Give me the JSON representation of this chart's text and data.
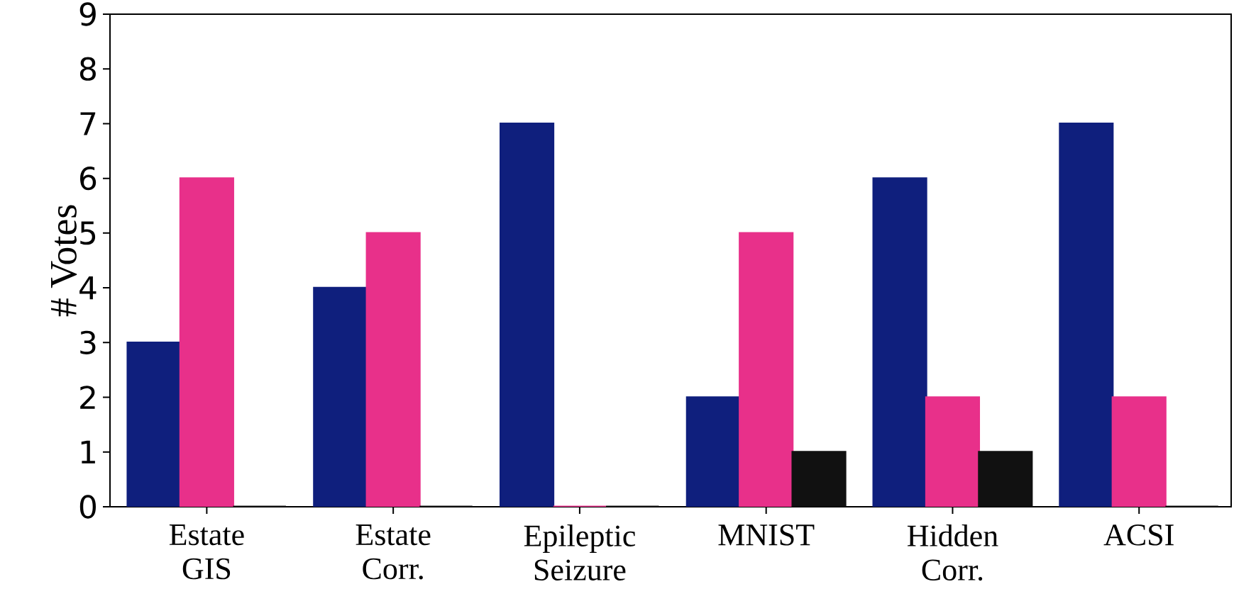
{
  "chart_data": {
    "type": "bar",
    "ylabel": "# Votes",
    "categories": [
      "Estate GIS",
      "Estate Corr.",
      "Epileptic Seizure",
      "MNIST",
      "Hidden Corr.",
      "ACSI"
    ],
    "series": [
      {
        "color": "#0f1f7d",
        "values": [
          3,
          4,
          7,
          2,
          6,
          7
        ]
      },
      {
        "color": "#e8308a",
        "values": [
          6,
          5,
          0,
          5,
          2,
          2
        ]
      },
      {
        "color": "#111111",
        "values": [
          0,
          0,
          0,
          1,
          1,
          0
        ]
      }
    ],
    "ylim": [
      0,
      9
    ],
    "yticks": [
      0,
      1,
      2,
      3,
      4,
      5,
      6,
      7,
      8,
      9
    ]
  }
}
